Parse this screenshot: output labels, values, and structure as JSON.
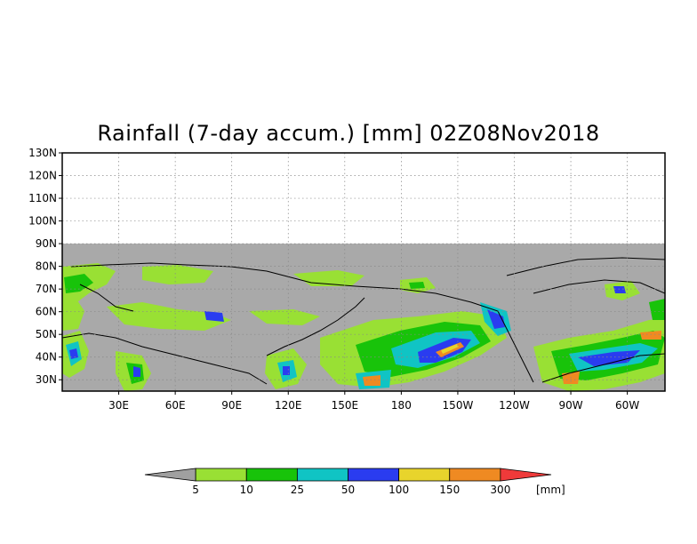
{
  "map": {
    "title": "Rainfall (7-day accum.) [mm] 02Z08Nov2018",
    "lat_labels": [
      "130N",
      "120N",
      "110N",
      "100N",
      "90N",
      "80N",
      "70N",
      "60N",
      "50N",
      "40N",
      "30N"
    ],
    "lat_values": [
      130,
      120,
      110,
      100,
      90,
      80,
      70,
      60,
      50,
      40,
      30
    ],
    "lon_labels": [
      "30E",
      "60E",
      "90E",
      "120E",
      "150E",
      "180",
      "150W",
      "120W",
      "90W",
      "60W"
    ],
    "lon_values": [
      30,
      60,
      90,
      120,
      150,
      180,
      210,
      240,
      270,
      300
    ],
    "lon_range": [
      0,
      320
    ],
    "lat_range": [
      25,
      130
    ],
    "no_data_lat_min": 90,
    "colors": {
      "no_data": "#a9a9a9",
      "frame": "#000000",
      "grid": "#888888"
    }
  },
  "legend": {
    "unit": "[mm]",
    "thresholds": [
      "5",
      "10",
      "25",
      "50",
      "100",
      "150",
      "300"
    ],
    "colors": [
      "#a0a0a0",
      "#99e034",
      "#18c30a",
      "#10c4c4",
      "#2a3cf0",
      "#e8d42c",
      "#ef8a22",
      "#ef3a3a"
    ]
  }
}
